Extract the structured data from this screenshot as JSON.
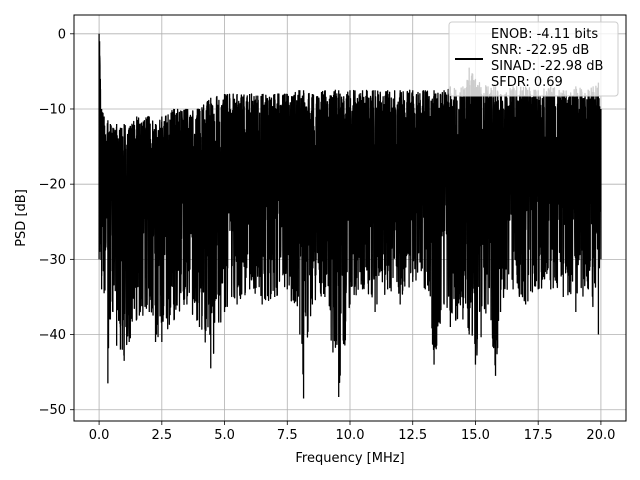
{
  "chart_data": {
    "type": "line",
    "xlabel": "Frequency [MHz]",
    "ylabel": "PSD [dB]",
    "xlim": [
      -1.0,
      21.0
    ],
    "ylim": [
      -51.5,
      2.5
    ],
    "x_ticks": [
      0.0,
      2.5,
      5.0,
      7.5,
      10.0,
      12.5,
      15.0,
      17.5,
      20.0
    ],
    "x_tick_labels": [
      "0.0",
      "2.5",
      "5.0",
      "7.5",
      "10.0",
      "12.5",
      "15.0",
      "17.5",
      "20.0"
    ],
    "y_ticks": [
      0,
      -10,
      -20,
      -30,
      -40,
      -50
    ],
    "y_tick_labels": [
      "0",
      "−10",
      "−20",
      "−30",
      "−40",
      "−50"
    ],
    "grid": true,
    "legend_position": "top-right",
    "series": [
      {
        "color": "#000000",
        "legend_lines": [
          "ENOB: -4.11 bits",
          "SNR: -22.95 dB",
          "SINAD: -22.98 dB",
          "SFDR: 0.69"
        ],
        "x": [
          0.0,
          0.02,
          0.05,
          0.1,
          0.2,
          0.35,
          0.45,
          0.55,
          0.7,
          0.85,
          1.0,
          1.2,
          1.5,
          2.0,
          2.25,
          2.5,
          3.0,
          3.5,
          4.0,
          4.45,
          5.0,
          5.5,
          6.0,
          6.5,
          7.0,
          7.5,
          8.0,
          8.15,
          8.5,
          9.0,
          9.55,
          10.0,
          10.5,
          11.0,
          11.5,
          12.0,
          12.5,
          13.0,
          13.35,
          13.75,
          14.0,
          14.5,
          14.75,
          15.0,
          15.5,
          15.8,
          16.0,
          16.5,
          17.0,
          17.5,
          18.0,
          18.5,
          19.0,
          19.5,
          19.9,
          20.0
        ],
        "max_psd": [
          0.0,
          -1.0,
          -6.0,
          -10.0,
          -11.0,
          -11.5,
          -12.0,
          -12.5,
          -12.0,
          -12.5,
          -12.0,
          -12.5,
          -11.0,
          -11.0,
          -12.0,
          -11.0,
          -10.0,
          -10.0,
          -10.0,
          -8.5,
          -8.0,
          -8.0,
          -8.0,
          -8.0,
          -8.0,
          -8.0,
          -7.5,
          -7.5,
          -8.0,
          -7.5,
          -7.5,
          -7.5,
          -7.5,
          -7.5,
          -7.5,
          -7.5,
          -7.5,
          -7.5,
          -7.5,
          -7.5,
          -7.0,
          -7.0,
          -4.5,
          -6.0,
          -7.0,
          -7.0,
          -8.0,
          -7.0,
          -7.0,
          -7.5,
          -7.0,
          -7.5,
          -7.0,
          -7.5,
          -6.5,
          -10.0
        ],
        "min_psd": [
          -30.0,
          -29.0,
          -28.0,
          -34.0,
          -34.5,
          -46.5,
          -38.0,
          -37.0,
          -41.5,
          -42.0,
          -43.5,
          -41.0,
          -38.0,
          -37.0,
          -41.0,
          -41.0,
          -38.0,
          -36.0,
          -39.0,
          -44.5,
          -37.0,
          -36.0,
          -34.0,
          -36.0,
          -35.0,
          -34.0,
          -40.0,
          -48.5,
          -36.0,
          -35.0,
          -48.3,
          -36.0,
          -34.0,
          -37.0,
          -34.0,
          -36.0,
          -33.0,
          -34.0,
          -44.0,
          -36.0,
          -39.0,
          -38.0,
          -40.0,
          -44.0,
          -36.0,
          -45.5,
          -37.0,
          -34.0,
          -36.0,
          -34.0,
          -34.0,
          -35.0,
          -37.0,
          -34.0,
          -40.0,
          -30.0
        ]
      }
    ]
  }
}
